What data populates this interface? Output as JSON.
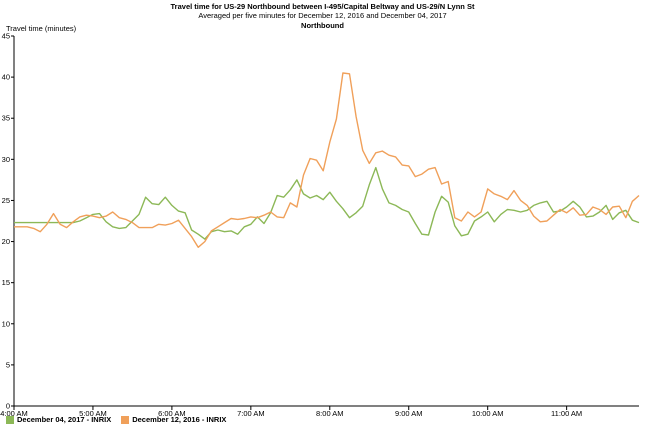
{
  "chart_data": {
    "type": "line",
    "title": "Travel time for US-29  Northbound between I-495/Capital Beltway and US-29/N Lynn St",
    "subtitle": "Averaged per five minutes for December 12, 2016 and December 04, 2017",
    "subtitle2": "Northbound",
    "ylabel": "Travel time (minutes)",
    "xlabel": "",
    "ylim": [
      0,
      45
    ],
    "yticks": [
      "0",
      "5",
      "10",
      "15",
      "20",
      "25",
      "30",
      "35",
      "40",
      "45"
    ],
    "xticks": [
      "4:00 AM",
      "5:00 AM",
      "6:00 AM",
      "7:00 AM",
      "8:00 AM",
      "9:00 AM",
      "10:00 AM",
      "11:00 AM"
    ],
    "grid": false,
    "legend": "bottom-left",
    "x_minutes_after_4am": [
      0,
      5,
      10,
      15,
      20,
      25,
      30,
      35,
      40,
      45,
      50,
      55,
      60,
      65,
      70,
      75,
      80,
      85,
      90,
      95,
      100,
      105,
      110,
      115,
      120,
      125,
      130,
      135,
      140,
      145,
      150,
      155,
      160,
      165,
      170,
      175,
      180,
      185,
      190,
      195,
      200,
      205,
      210,
      215,
      220,
      225,
      230,
      235,
      240,
      245,
      250,
      255,
      260,
      265,
      270,
      275,
      280,
      285,
      290,
      295,
      300,
      305,
      310,
      315,
      320,
      325,
      330,
      335,
      340,
      345,
      350,
      355,
      360,
      365,
      370,
      375,
      380,
      385,
      390,
      395,
      400,
      405,
      410,
      415,
      420,
      425,
      430,
      435,
      440,
      445,
      450,
      455,
      460,
      465,
      470,
      475
    ],
    "series": [
      {
        "name": "December 04, 2017 - INRIX",
        "color": "#8cb857",
        "values": [
          22.3,
          22.3,
          22.3,
          22.3,
          22.3,
          22.3,
          22.3,
          22.3,
          22.3,
          22.3,
          22.5,
          22.9,
          23.3,
          23.4,
          22.4,
          21.8,
          21.6,
          21.7,
          22.5,
          23.3,
          25.4,
          24.6,
          24.5,
          25.4,
          24.4,
          23.7,
          23.5,
          21.4,
          20.9,
          20.3,
          21.2,
          21.4,
          21.2,
          21.3,
          20.9,
          21.8,
          22.1,
          23.0,
          22.2,
          23.5,
          25.6,
          25.4,
          26.3,
          27.5,
          25.8,
          25.3,
          25.6,
          25.1,
          26.0,
          24.9,
          24.0,
          22.9,
          23.5,
          24.3,
          26.9,
          29.0,
          26.4,
          24.7,
          24.4,
          23.9,
          23.6,
          22.2,
          20.9,
          20.8,
          23.6,
          25.5,
          24.8,
          21.9,
          20.7,
          20.9,
          22.5,
          23.0,
          23.6,
          22.4,
          23.3,
          23.9,
          23.8,
          23.6,
          23.8,
          24.4,
          24.7,
          24.9,
          23.6,
          23.7,
          24.2,
          24.9,
          24.2,
          23.0,
          23.1,
          23.6,
          24.4,
          22.7,
          23.5,
          23.8,
          22.6,
          22.3
        ]
      },
      {
        "name": "December 12, 2016 - INRIX",
        "color": "#f0a05a",
        "values": [
          21.8,
          21.8,
          21.8,
          21.6,
          21.2,
          22.1,
          23.4,
          22.1,
          21.7,
          22.4,
          23.0,
          23.2,
          23.1,
          22.9,
          23.1,
          23.6,
          22.9,
          22.7,
          22.3,
          21.7,
          21.7,
          21.7,
          22.1,
          22.0,
          22.2,
          22.6,
          21.6,
          20.6,
          19.3,
          20.0,
          21.3,
          21.8,
          22.3,
          22.8,
          22.7,
          22.8,
          23.0,
          22.9,
          23.2,
          23.6,
          23.0,
          22.9,
          24.7,
          24.2,
          28.1,
          30.1,
          29.9,
          28.6,
          32.1,
          34.9,
          40.5,
          40.4,
          35.2,
          31.1,
          29.5,
          30.8,
          31.0,
          30.5,
          30.3,
          29.3,
          29.2,
          27.9,
          28.2,
          28.8,
          29.0,
          27.0,
          27.3,
          22.9,
          22.5,
          23.6,
          23.0,
          23.6,
          26.4,
          25.8,
          25.5,
          25.1,
          26.2,
          25.0,
          24.4,
          23.1,
          22.4,
          22.5,
          23.2,
          23.9,
          23.5,
          24.1,
          23.2,
          23.3,
          24.2,
          23.9,
          23.3,
          24.2,
          24.3,
          22.9,
          24.9,
          25.6
        ]
      }
    ]
  }
}
